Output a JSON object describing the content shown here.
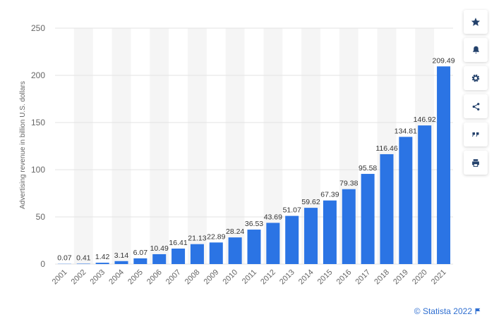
{
  "chart_data": {
    "type": "bar",
    "title": "",
    "xlabel": "",
    "ylabel": "Advertising revenue in billion U.S. dollars",
    "ylim": [
      0,
      250
    ],
    "yticks": [
      0,
      50,
      100,
      150,
      200,
      250
    ],
    "grid": true,
    "categories": [
      "2001",
      "2002",
      "2003",
      "2004",
      "2005",
      "2006",
      "2007",
      "2008",
      "2009",
      "2010",
      "2011",
      "2012",
      "2013",
      "2014",
      "2015",
      "2016",
      "2017",
      "2018",
      "2019",
      "2020",
      "2021"
    ],
    "values": [
      0.07,
      0.41,
      1.42,
      3.14,
      6.07,
      10.49,
      16.41,
      21.13,
      22.89,
      28.24,
      36.53,
      43.69,
      51.07,
      59.62,
      67.39,
      79.38,
      95.58,
      116.46,
      134.81,
      146.92,
      209.49
    ],
    "value_labels": [
      "0.07",
      "0.41",
      "1.42",
      "3.14",
      "6.07",
      "10.49",
      "16.41",
      "21.13",
      "22.89",
      "28.24",
      "36.53",
      "43.69",
      "51.07",
      "59.62",
      "67.39",
      "79.38",
      "95.58",
      "116.46",
      "134.81",
      "146.92",
      "209.49"
    ],
    "colors": {
      "bar": "#2b74e4",
      "grid": "#e3e3e3",
      "band": "#f5f5f5",
      "tick_text": "#666666",
      "label_text": "#333333"
    }
  },
  "toolbar": [
    {
      "icon": "star-icon"
    },
    {
      "icon": "bell-icon"
    },
    {
      "icon": "gear-icon"
    },
    {
      "icon": "share-icon"
    },
    {
      "icon": "quote-icon"
    },
    {
      "icon": "print-icon"
    }
  ],
  "credit": {
    "text": "© Statista 2022",
    "icon": "flag-icon",
    "color": "#2f6fd1"
  }
}
